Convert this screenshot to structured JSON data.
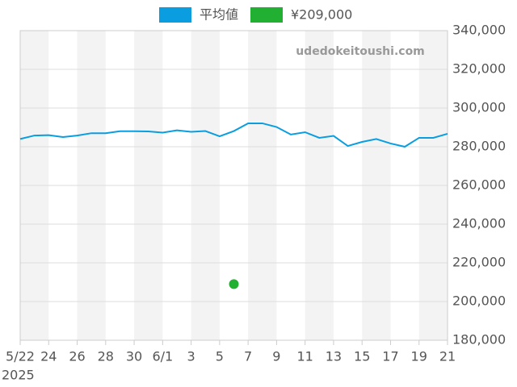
{
  "chart_data": {
    "type": "line",
    "watermark": "udedokeitoushi.com",
    "categories": [
      "5/22",
      null,
      "24",
      null,
      "26",
      null,
      "28",
      null,
      "30",
      null,
      "6/1",
      null,
      "3",
      null,
      "5",
      null,
      "7",
      null,
      "9",
      null,
      "11",
      null,
      "13",
      null,
      "15",
      null,
      "17",
      null,
      "19",
      null,
      "21"
    ],
    "year_label": "2025",
    "series": [
      {
        "name": "平均値",
        "color": "#0a9ee0",
        "mode": "line",
        "values": [
          284000,
          285800,
          286000,
          285000,
          285800,
          287000,
          287000,
          288000,
          288000,
          287900,
          287300,
          288500,
          287700,
          288100,
          285400,
          288100,
          292100,
          292100,
          290200,
          286300,
          287500,
          284600,
          285600,
          280400,
          282500,
          284000,
          281700,
          280000,
          284600,
          284600,
          286700
        ]
      },
      {
        "name": "¥209,000",
        "color": "#22b033",
        "mode": "marker",
        "values": [
          null,
          null,
          null,
          null,
          null,
          null,
          null,
          null,
          null,
          null,
          null,
          null,
          null,
          null,
          null,
          209000,
          null,
          null,
          null,
          null,
          null,
          null,
          null,
          null,
          null,
          null,
          null,
          null,
          null,
          null,
          null
        ]
      }
    ],
    "ylim": [
      180000,
      340000
    ],
    "yticks": [
      {
        "value": 180000,
        "label": "180,000"
      },
      {
        "value": 200000,
        "label": "200,000"
      },
      {
        "value": 220000,
        "label": "220,000"
      },
      {
        "value": 240000,
        "label": "240,000"
      },
      {
        "value": 260000,
        "label": "260,000"
      },
      {
        "value": 280000,
        "label": "280,000"
      },
      {
        "value": 300000,
        "label": "300,000"
      },
      {
        "value": 320000,
        "label": "320,000"
      },
      {
        "value": 340000,
        "label": "340,000"
      }
    ],
    "grid": true,
    "legend": "top"
  }
}
